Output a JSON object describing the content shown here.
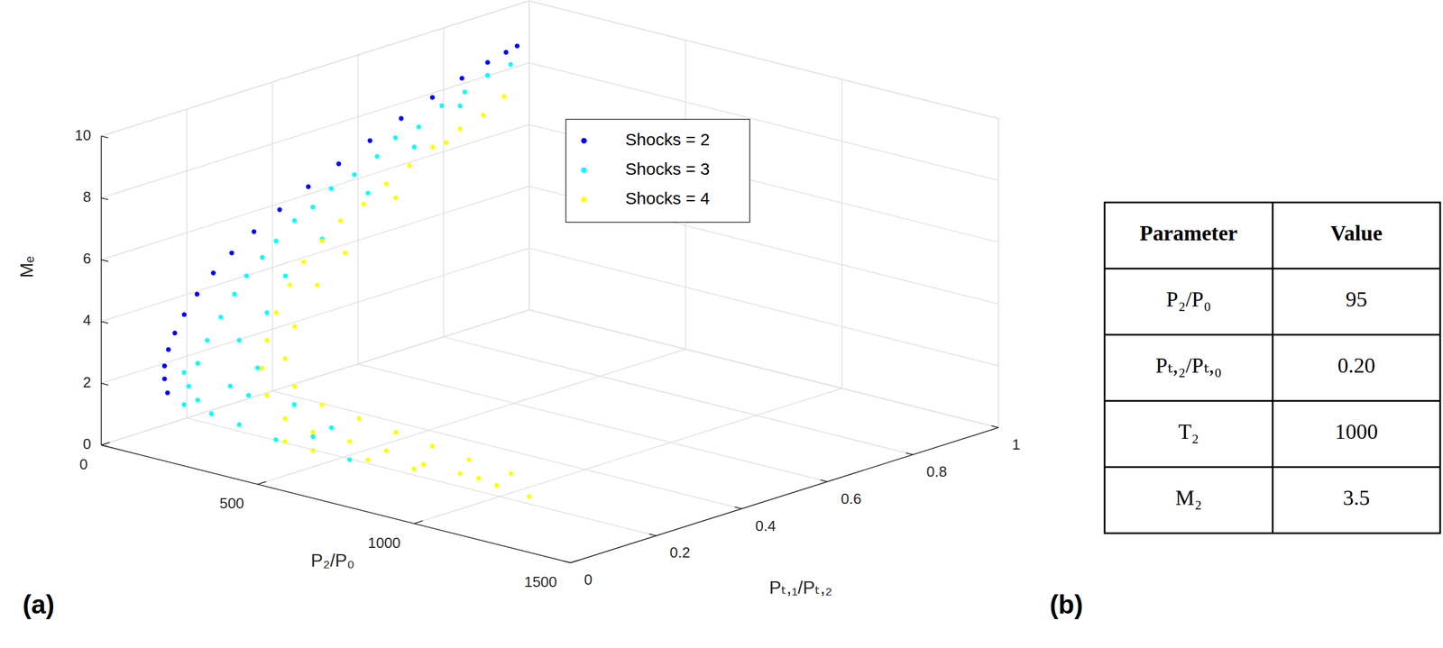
{
  "chart_data": {
    "type": "scatter3d",
    "xlabel": "P₂/P₀",
    "ylabel": "Pₜ,₁/Pₜ,₂",
    "zlabel": "Mₑ",
    "xlim": [
      0,
      1500
    ],
    "ylim": [
      0,
      1
    ],
    "zlim": [
      0,
      10
    ],
    "xticks": [
      0,
      500,
      1000,
      1500
    ],
    "yticks": [
      0,
      0.2,
      0.4,
      0.6,
      0.8,
      1
    ],
    "zticks": [
      0,
      2,
      4,
      6,
      8,
      10
    ],
    "grid": true,
    "legend": "top-right",
    "series": [
      {
        "name": "Shocks = 2",
        "color": "#0000ff",
        "marker": "dot",
        "x": [
          15,
          15,
          15,
          15,
          15,
          15,
          15,
          15,
          15,
          15,
          15,
          15,
          15,
          15,
          15,
          15,
          15,
          15,
          15,
          15
        ],
        "y": [
          0.144,
          0.137,
          0.137,
          0.146,
          0.161,
          0.183,
          0.213,
          0.251,
          0.294,
          0.346,
          0.406,
          0.473,
          0.544,
          0.617,
          0.69,
          0.763,
          0.832,
          0.892,
          0.935,
          0.961
        ],
        "z": [
          1.1,
          1.58,
          2.0,
          2.49,
          2.96,
          3.46,
          3.99,
          4.51,
          4.97,
          5.43,
          5.88,
          6.33,
          6.76,
          7.19,
          7.59,
          7.95,
          8.27,
          8.52,
          8.66,
          8.75
        ]
      },
      {
        "name": "Shocks = 3",
        "color": "#00ffff",
        "marker": "dot",
        "x": [
          45,
          60,
          75,
          75,
          90,
          105,
          120,
          120,
          150,
          150,
          180,
          180,
          180,
          195,
          195,
          180,
          180,
          150,
          150,
          120,
          180,
          225,
          375,
          525,
          630,
          225,
          270,
          240,
          270,
          375,
          450,
          270,
          270,
          225,
          180,
          150,
          120,
          480,
          270,
          150
        ],
        "y": [
          0.924,
          0.859,
          0.795,
          0.741,
          0.676,
          0.611,
          0.557,
          0.504,
          0.428,
          0.385,
          0.32,
          0.277,
          0.245,
          0.197,
          0.169,
          0.148,
          0.116,
          0.116,
          0.095,
          0.106,
          0.126,
          0.158,
          0.134,
          0.111,
          0.12,
          0.137,
          0.168,
          0.147,
          0.19,
          0.177,
          0.209,
          0.233,
          0.319,
          0.459,
          0.6,
          0.729,
          0.106,
          0.144,
          0.147,
          0.116
        ],
        "z": [
          8.39,
          8.36,
          8.14,
          7.93,
          7.57,
          7.54,
          7.21,
          6.85,
          6.81,
          6.4,
          6.32,
          5.85,
          5.46,
          5.11,
          4.64,
          3.95,
          3.34,
          2.52,
          1.87,
          1.15,
          0.92,
          0.54,
          0.54,
          0.67,
          0.6,
          1.88,
          2.45,
          3.36,
          4.14,
          1.49,
          0.79,
          5.14,
          5.96,
          6.72,
          7.48,
          8.17,
          2.19,
          0.86,
          1.65,
          1.33
        ]
      },
      {
        "name": "Shocks = 4",
        "color": "#ffff00",
        "marker": "dot",
        "x": [
          150,
          180,
          210,
          240,
          270,
          300,
          330,
          360,
          375,
          405,
          420,
          420,
          420,
          420,
          450,
          525,
          600,
          675,
          780,
          900,
          1020,
          1140,
          1260,
          1200,
          1050,
          900,
          780,
          675,
          570,
          480,
          450,
          450,
          900,
          750,
          600,
          510,
          420,
          405,
          360,
          270,
          1080
        ],
        "y": [
          0.832,
          0.761,
          0.685,
          0.599,
          0.523,
          0.447,
          0.372,
          0.296,
          0.242,
          0.177,
          0.134,
          0.102,
          0.08,
          0.069,
          0.058,
          0.046,
          0.056,
          0.087,
          0.096,
          0.095,
          0.093,
          0.091,
          0.079,
          0.08,
          0.092,
          0.116,
          0.118,
          0.109,
          0.099,
          0.101,
          0.101,
          0.123,
          0.073,
          0.075,
          0.056,
          0.057,
          0.198,
          0.274,
          0.425,
          0.609,
          0.092
        ],
        "z": [
          8.02,
          7.81,
          7.77,
          7.63,
          7.44,
          7.26,
          7.01,
          6.88,
          6.5,
          6.18,
          5.66,
          4.91,
          4.11,
          3.26,
          2.5,
          1.99,
          1.7,
          1.45,
          1.38,
          1.24,
          1.26,
          1.19,
          1.19,
          1.77,
          1.79,
          1.75,
          1.88,
          2.1,
          2.32,
          2.68,
          3.5,
          4.44,
          1.19,
          1.1,
          1.1,
          1.16,
          5.38,
          6.05,
          7.06,
          7.81,
          1.27
        ]
      }
    ]
  },
  "table": {
    "header": [
      "Parameter",
      "Value"
    ],
    "rows": [
      [
        "P₂/P₀",
        "95"
      ],
      [
        "Pₜ,₂/Pₜ,₀",
        "0.20"
      ],
      [
        "T₂",
        "1000"
      ],
      [
        "M₂",
        "3.5"
      ]
    ]
  },
  "panel_labels": [
    "(a)",
    "(b)"
  ]
}
